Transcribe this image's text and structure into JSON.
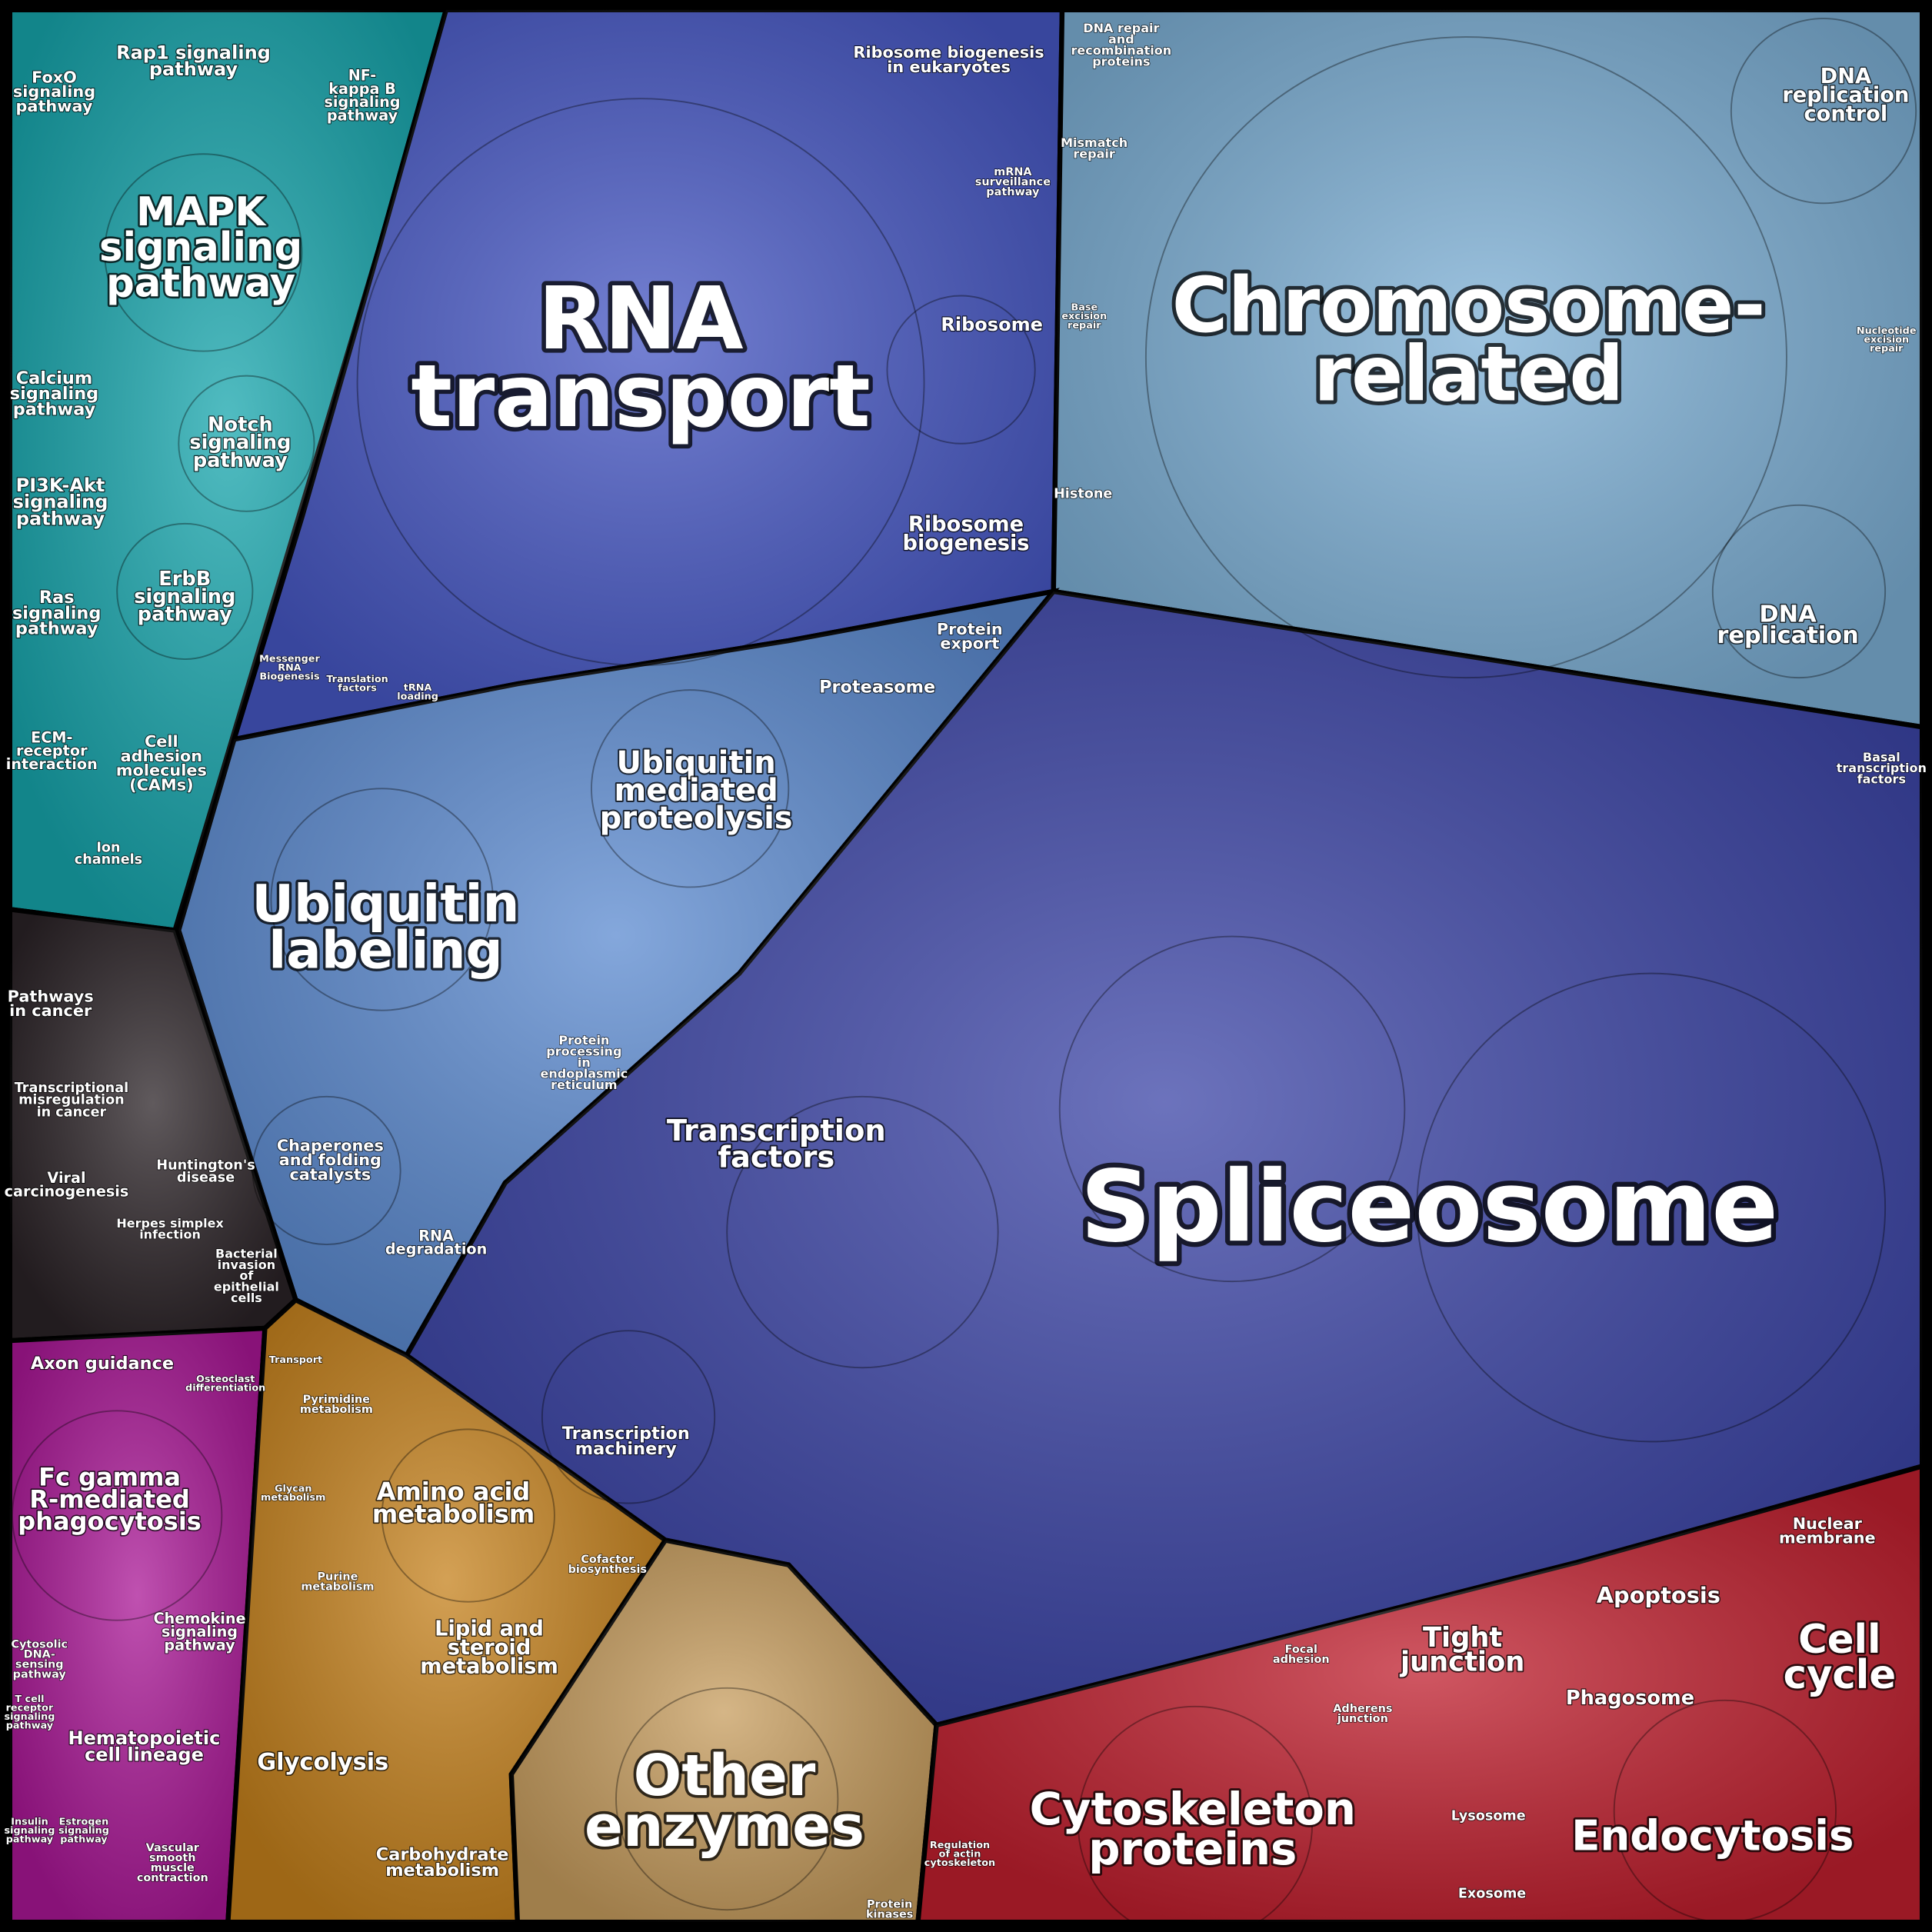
{
  "labels": [
    [
      "RNA",
      "transport"
    ],
    [
      "Chromosome-",
      "related"
    ],
    [
      "Spliceosome"
    ],
    [
      "MAPK",
      "signaling",
      "pathway"
    ],
    [
      "Ubiquitin",
      "labeling"
    ],
    [
      "Other",
      "enzymes"
    ],
    [
      "Cytoskeleton",
      "proteins"
    ],
    [
      "Endocytosis"
    ],
    [
      "Cell",
      "cycle"
    ],
    [
      "Ubiquitin",
      "mediated",
      "proteolysis"
    ],
    [
      "Transcription",
      "factors"
    ],
    [
      "Fc gamma",
      "R-mediated",
      "phagocytosis"
    ],
    [
      "Amino acid",
      "metabolism"
    ],
    [
      "Lipid and",
      "steroid",
      "metabolism"
    ],
    [
      "Glycolysis"
    ],
    [
      "Carbohydrate",
      "metabolism"
    ],
    [
      "Tight",
      "junction"
    ],
    [
      "Apoptosis"
    ],
    [
      "Phagosome"
    ],
    [
      "DNA",
      "replication"
    ],
    [
      "DNA",
      "replication",
      "control"
    ],
    [
      "Ribosome",
      "biogenesis"
    ],
    [
      "Ribosome"
    ],
    [
      "Ribosome biogenesis",
      "in eukaryotes"
    ],
    [
      "Rap1 signaling",
      "pathway"
    ],
    [
      "FoxO",
      "signaling",
      "pathway"
    ],
    [
      "NF-",
      "kappa B",
      "signaling",
      "pathway"
    ],
    [
      "Notch",
      "signaling",
      "pathway"
    ],
    [
      "Calcium",
      "signaling",
      "pathway"
    ],
    [
      "PI3K-Akt",
      "signaling",
      "pathway"
    ],
    [
      "ErbB",
      "signaling",
      "pathway"
    ],
    [
      "Ras",
      "signaling",
      "pathway"
    ],
    [
      "ECM-",
      "receptor",
      "interaction"
    ],
    [
      "Cell",
      "adhesion",
      "molecules",
      "(CAMs)"
    ],
    [
      "Ion",
      "channels"
    ],
    [
      "Pathways",
      "in cancer"
    ],
    [
      "Transcriptional",
      "misregulation",
      "in cancer"
    ],
    [
      "Viral",
      "carcinogenesis"
    ],
    [
      "Huntington's",
      "disease"
    ],
    [
      "Herpes simplex",
      "infection"
    ],
    [
      "Bacterial",
      "invasion",
      "of",
      "epithelial",
      "cells"
    ],
    [
      "Axon guidance"
    ],
    [
      "Chemokine",
      "signaling",
      "pathway"
    ],
    [
      "Hematopoietic",
      "cell lineage"
    ],
    [
      "Protein",
      "export"
    ],
    [
      "Proteasome"
    ],
    [
      "Chaperones",
      "and folding",
      "catalysts"
    ],
    [
      "RNA",
      "degradation"
    ],
    [
      "Protein",
      "processing",
      "in",
      "endoplasmic",
      "reticulum"
    ],
    [
      "Transcription",
      "machinery"
    ],
    [
      "Histone"
    ],
    [
      "Mismatch",
      "repair"
    ],
    [
      "DNA repair",
      "and",
      "recombination",
      "proteins"
    ],
    [
      "Nuclear",
      "membrane"
    ],
    [
      "Basal",
      "transcription",
      "factors"
    ],
    [
      "Exosome"
    ],
    [
      "Lysosome"
    ],
    [
      "Pyrimidine",
      "metabolism"
    ],
    [
      "Purine",
      "metabolism"
    ],
    [
      "Glycan",
      "metabolism"
    ],
    [
      "Cofactor",
      "biosynthesis"
    ],
    [
      "Focal",
      "adhesion"
    ],
    [
      "Adherens",
      "junction"
    ],
    [
      "Messenger",
      "RNA",
      "Biogenesis"
    ],
    [
      "Translation",
      "factors"
    ],
    [
      "tRNA",
      "loading"
    ],
    [
      "mRNA",
      "surveillance",
      "pathway"
    ],
    [
      "Nucleotide",
      "excision",
      "repair"
    ],
    [
      "Base",
      "excision",
      "repair"
    ],
    [
      "Regulation",
      "of actin",
      "cytoskeleton"
    ],
    [
      "Protein",
      "kinases"
    ],
    [
      "Cytosolic",
      "DNA-",
      "sensing",
      "pathway"
    ],
    [
      "T cell",
      "receptor",
      "signaling",
      "pathway"
    ],
    [
      "Vascular",
      "smooth",
      "muscle",
      "contraction"
    ],
    [
      "Insulin",
      "signaling",
      "pathway"
    ],
    [
      "Estrogen",
      "signaling",
      "pathway"
    ],
    [
      "Osteoclast",
      "differentiation"
    ],
    [
      "Transport"
    ]
  ]
}
